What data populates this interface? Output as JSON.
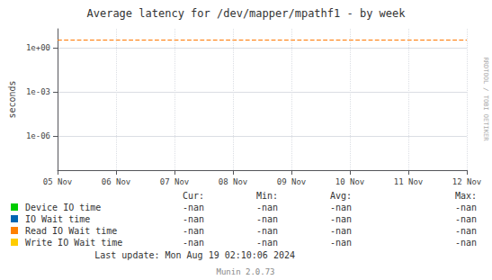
{
  "chart_data": {
    "type": "line",
    "title": "Average latency for /dev/mapper/mpathf1 - by week",
    "ylabel": "seconds",
    "categories": [
      "05 Nov",
      "06 Nov",
      "07 Nov",
      "08 Nov",
      "09 Nov",
      "10 Nov",
      "11 Nov",
      "12 Nov"
    ],
    "series": [
      {
        "name": "Device IO time",
        "color": "#00cc00",
        "values": [
          null,
          null,
          null,
          null,
          null,
          null,
          null,
          null
        ],
        "stats": [
          "-nan",
          "-nan",
          "-nan",
          "-nan"
        ]
      },
      {
        "name": "IO Wait time",
        "color": "#0066b3",
        "values": [
          null,
          null,
          null,
          null,
          null,
          null,
          null,
          null
        ],
        "stats": [
          "-nan",
          "-nan",
          "-nan",
          "-nan"
        ]
      },
      {
        "name": "Read IO Wait time",
        "color": "#ff8000",
        "values": [
          null,
          null,
          null,
          null,
          null,
          null,
          null,
          null
        ],
        "stats": [
          "-nan",
          "-nan",
          "-nan",
          "-nan"
        ]
      },
      {
        "name": "Write IO Wait time",
        "color": "#ffcc00",
        "values": [
          null,
          null,
          null,
          null,
          null,
          null,
          null,
          null
        ],
        "stats": [
          "-nan",
          "-nan",
          "-nan",
          "-nan"
        ]
      }
    ],
    "stat_columns": [
      "Cur:",
      "Min:",
      "Avg:",
      "Max:"
    ],
    "hline": {
      "y": 3.5,
      "color": "#ff7700",
      "line_style": "dashed"
    },
    "log": "y",
    "ylim": [
      5e-09,
      20
    ],
    "yticks": [
      {
        "value": 1e-06,
        "label": "1e-06"
      },
      {
        "value": 0.001,
        "label": "1e-03"
      },
      {
        "value": 1,
        "label": "1e+00"
      }
    ],
    "grid": true,
    "watermark": "RRDTOOL / TOBI OETIKER",
    "last_update": "Last update: Mon Aug 19 02:10:06 2024",
    "footer": "Munin 2.0.73"
  }
}
